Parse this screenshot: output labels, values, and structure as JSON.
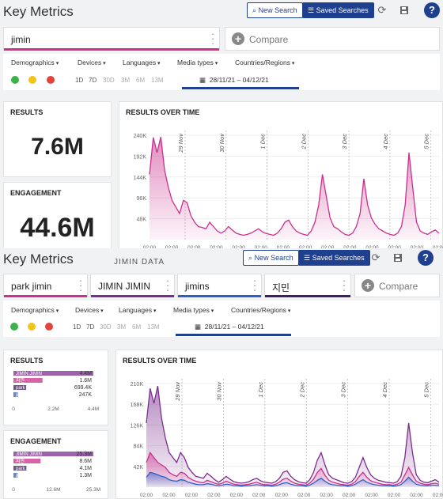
{
  "top": {
    "title": "Key Metrics",
    "new_search": "New Search",
    "saved_searches": "Saved Searches",
    "queries": [
      "jimin"
    ],
    "compare": "Compare",
    "filters": [
      "Demographics",
      "Devices",
      "Languages",
      "Media types",
      "Countries/Regions"
    ],
    "ranges": [
      "1D",
      "7D",
      "30D",
      "3M",
      "6M",
      "13M"
    ],
    "date_range": "28/11/21 – 04/12/21",
    "results_title": "RESULTS",
    "results_value": "7.6M",
    "engagement_title": "ENGAGEMENT",
    "engagement_value": "44.6M",
    "chart_title": "RESULTS OVER TIME"
  },
  "bottom": {
    "title": "Key Metrics",
    "subtitle": "JIMIN DATA",
    "new_search": "New Search",
    "saved_searches": "Saved Searches",
    "queries": [
      "park jimin",
      "JIMIN JIMIN",
      "jimins",
      "지민"
    ],
    "compare": "Compare",
    "filters": [
      "Demographics",
      "Devices",
      "Languages",
      "Media types",
      "Countries/Regions"
    ],
    "ranges": [
      "1D",
      "7D",
      "30D",
      "3M",
      "6M",
      "13M"
    ],
    "date_range": "28/11/21 – 04/12/21",
    "results_title": "RESULTS",
    "engagement_title": "ENGAGEMENT",
    "chart_title": "RESULTS OVER TIME"
  },
  "colors": {
    "accent": "#1f3f8f",
    "magenta": "#cc2f8c",
    "purple": "#7b2d8e",
    "dark_purple": "#3e1f5c",
    "blue": "#2e5fc7",
    "positive": "#3bb34a",
    "neutral": "#f0c419",
    "negative": "#e2433d"
  },
  "chart_data": [
    {
      "type": "area",
      "title": "RESULTS OVER TIME",
      "ylim": [
        0,
        240000
      ],
      "y_ticks": [
        "240K",
        "192K",
        "144K",
        "96K",
        "48K"
      ],
      "x_ticks": [
        "02:00",
        "02:00",
        "02:00",
        "02:00",
        "02:00",
        "02:00",
        "02:00",
        "02:00",
        "02:00",
        "02:00",
        "02:00",
        "02:00",
        "02:00",
        "02:00"
      ],
      "day_markers": [
        "29 Nov",
        "30 Nov",
        "1 Dec",
        "2 Dec",
        "3 Dec",
        "4 Dec",
        "5 Dec"
      ],
      "series": [
        {
          "values": [
            150000,
            235000,
            200000,
            236000,
            160000,
            120000,
            90000,
            75000,
            60000,
            90000,
            85000,
            55000,
            40000,
            30000,
            28000,
            25000,
            40000,
            30000,
            20000,
            15000,
            20000,
            30000,
            22000,
            15000,
            12000,
            10000,
            12000,
            15000,
            20000,
            25000,
            18000,
            14000,
            12000,
            10000,
            15000,
            25000,
            40000,
            45000,
            30000,
            20000,
            15000,
            12000,
            10000,
            20000,
            40000,
            80000,
            150000,
            100000,
            50000,
            30000,
            25000,
            18000,
            12000,
            10000,
            15000,
            30000,
            60000,
            140000,
            80000,
            50000,
            35000,
            25000,
            20000,
            15000,
            12000,
            10000,
            15000,
            30000,
            80000,
            200000,
            120000,
            40000,
            20000,
            15000,
            12000,
            18000,
            22000,
            15000
          ]
        }
      ]
    },
    {
      "type": "bar",
      "title": "RESULTS",
      "categories": [
        "JIMIN JIMIN",
        "지민",
        "park jimin",
        "jimins"
      ],
      "values": [
        4400000,
        1600000,
        699400,
        247000
      ],
      "value_labels": [
        "4.4M",
        "1.6M",
        "699.4K",
        "247K"
      ],
      "x_ticks": [
        "0",
        "2.2M",
        "4.4M"
      ]
    },
    {
      "type": "bar",
      "title": "ENGAGEMENT",
      "categories": [
        "JIMIN JIMIN",
        "지민",
        "park jimin",
        "jimins"
      ],
      "values": [
        25300000,
        8600000,
        4100000,
        1300000
      ],
      "value_labels": [
        "25.3M",
        "8.6M",
        "4.1M",
        "1.3M"
      ],
      "x_ticks": [
        "0",
        "12.6M",
        "25.3M"
      ]
    },
    {
      "type": "area",
      "title": "RESULTS OVER TIME",
      "ylim": [
        0,
        210000
      ],
      "y_ticks": [
        "210K",
        "168K",
        "126K",
        "84K",
        "42K"
      ],
      "x_ticks": [
        "02:00",
        "02:00",
        "02:00",
        "02:00",
        "02:00",
        "02:00",
        "02:00",
        "02:00",
        "02:00",
        "02:00",
        "02:00",
        "02:00",
        "02:00",
        "02:00"
      ],
      "day_markers": [
        "29 Nov",
        "30 Nov",
        "1 Dec",
        "2 Dec",
        "3 Dec",
        "4 Dec",
        "5 Dec"
      ],
      "series": [
        {
          "values": [
            130000,
            200000,
            170000,
            205000,
            140000,
            100000,
            70000,
            60000,
            50000,
            70000,
            60000,
            40000,
            30000,
            22000,
            20000,
            18000,
            28000,
            22000,
            15000,
            10000,
            15000,
            22000,
            16000,
            11000,
            9000,
            8000,
            9000,
            11000,
            15000,
            18000,
            13000,
            10000,
            9000,
            8000,
            11000,
            18000,
            30000,
            33000,
            22000,
            15000,
            11000,
            9000,
            8000,
            15000,
            30000,
            55000,
            70000,
            45000,
            25000,
            18000,
            15000,
            12000,
            9000,
            8000,
            11000,
            20000,
            40000,
            60000,
            40000,
            25000,
            18000,
            14000,
            12000,
            10000,
            9000,
            8000,
            11000,
            22000,
            60000,
            130000,
            70000,
            25000,
            14000,
            10000,
            9000,
            12000,
            15000,
            10000
          ]
        },
        {
          "values": [
            50000,
            70000,
            60000,
            50000,
            45000,
            40000,
            30000,
            25000,
            22000,
            30000,
            28000,
            20000,
            15000,
            12000,
            10000,
            9000,
            14000,
            11000,
            8000,
            6000,
            8000,
            12000,
            9000,
            6000,
            5000,
            4000,
            5000,
            6000,
            8000,
            10000,
            7000,
            5000,
            5000,
            4000,
            6000,
            10000,
            16000,
            18000,
            12000,
            8000,
            6000,
            5000,
            4000,
            8000,
            16000,
            30000,
            38000,
            24000,
            14000,
            10000,
            8000,
            6000,
            5000,
            4000,
            6000,
            11000,
            22000,
            30000,
            20000,
            13000,
            10000,
            8000,
            6000,
            5000,
            5000,
            4000,
            6000,
            10000,
            25000,
            40000,
            25000,
            12000,
            8000,
            6000,
            5000,
            7000,
            8000,
            6000
          ]
        },
        {
          "values": [
            20000,
            30000,
            28000,
            25000,
            22000,
            20000,
            15000,
            13000,
            12000,
            15000,
            14000,
            10000,
            8000,
            6000,
            5000,
            5000,
            7000,
            6000,
            4000,
            3000,
            4000,
            6000,
            5000,
            3000,
            3000,
            2000,
            3000,
            3000,
            4000,
            5000,
            4000,
            3000,
            3000,
            2000,
            3000,
            5000,
            8000,
            9000,
            6000,
            4000,
            3000,
            3000,
            2000,
            4000,
            8000,
            14000,
            18000,
            12000,
            7000,
            5000,
            4000,
            3000,
            3000,
            2000,
            3000,
            6000,
            11000,
            15000,
            10000,
            7000,
            5000,
            4000,
            3000,
            3000,
            3000,
            2000,
            3000,
            5000,
            12000,
            20000,
            12000,
            6000,
            4000,
            3000,
            3000,
            4000,
            4000,
            3000
          ]
        }
      ]
    }
  ]
}
